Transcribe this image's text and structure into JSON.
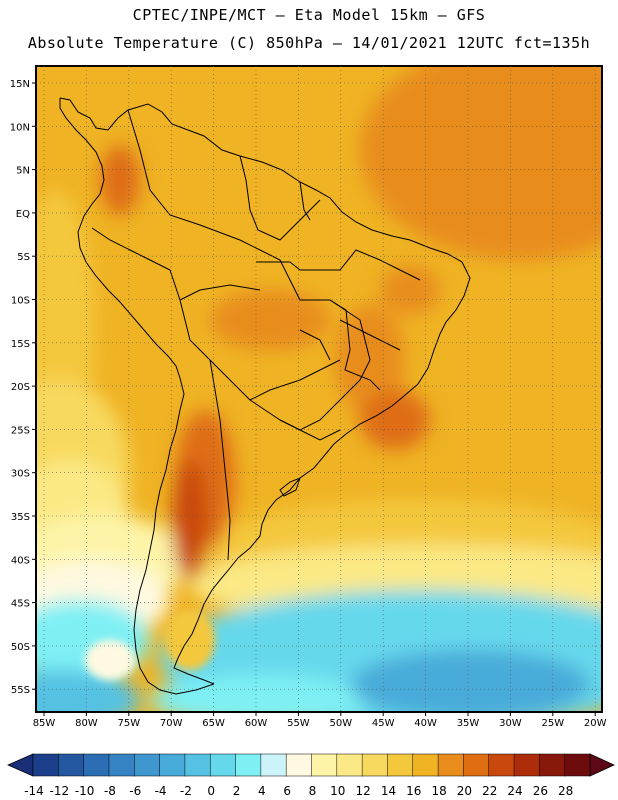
{
  "header": {
    "line1": "CPTEC/INPE/MCT –   Eta Model 15km – GFS",
    "line2": "Absolute Temperature (C) 850hPa – 14/01/2021 12UTC fct=135h"
  },
  "map": {
    "variable": "Absolute Temperature (C) at 850hPa",
    "lat_labels": [
      "15N",
      "10N",
      "5N",
      "EQ",
      "5S",
      "10S",
      "15S",
      "20S",
      "25S",
      "30S",
      "35S",
      "40S",
      "45S",
      "50S",
      "55S"
    ],
    "lon_labels": [
      "85W",
      "80W",
      "75W",
      "70W",
      "65W",
      "60W",
      "55W",
      "50W",
      "45W",
      "40W",
      "35W",
      "30W",
      "25W",
      "20W"
    ]
  },
  "colorbar": {
    "ticks": [
      "-14",
      "-12",
      "-10",
      "-8",
      "-6",
      "-4",
      "-2",
      "0",
      "2",
      "4",
      "6",
      "8",
      "10",
      "12",
      "14",
      "16",
      "18",
      "20",
      "22",
      "24",
      "26",
      "28"
    ],
    "colors": [
      "#1c3f8c",
      "#2357a0",
      "#2b6eb3",
      "#3583c3",
      "#3f97cf",
      "#48abd9",
      "#55c2e3",
      "#66d8ec",
      "#7ef0f4",
      "#cdf3fa",
      "#fef9e0",
      "#fdf4a8",
      "#fbe985",
      "#f8d95f",
      "#f4c83d",
      "#efb324",
      "#e88d1b",
      "#df6d12",
      "#c9480d",
      "#ad2d0a",
      "#87180a",
      "#6e0c0d"
    ],
    "under_color": "#1a2f78",
    "over_color": "#5c0817"
  }
}
